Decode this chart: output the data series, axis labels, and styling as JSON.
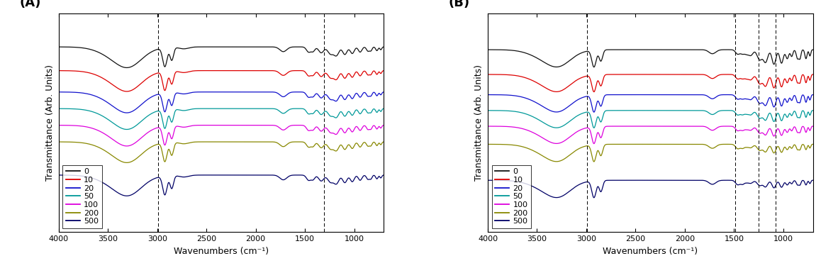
{
  "panel_A_label": "(A)",
  "panel_B_label": "(B)",
  "xlabel": "Wavenumbers (cm⁻¹)",
  "ylabel": "Transmittance (Arb. Units)",
  "legend_labels": [
    "0",
    "10",
    "20",
    "50",
    "100",
    "200",
    "500"
  ],
  "line_colors": [
    "#111111",
    "#dd0000",
    "#1111cc",
    "#009999",
    "#dd00dd",
    "#888800",
    "#000066"
  ],
  "line_width": 0.9,
  "panel_A_vlines": [
    2990,
    1310
  ],
  "panel_B_vlines": [
    2990,
    1490,
    1250,
    1080
  ],
  "background_color": "#ffffff",
  "label_fontsize": 9,
  "tick_fontsize": 8,
  "legend_fontsize": 8,
  "panel_label_fontsize": 13,
  "figsize": [
    11.82,
    3.85
  ],
  "dpi": 100
}
